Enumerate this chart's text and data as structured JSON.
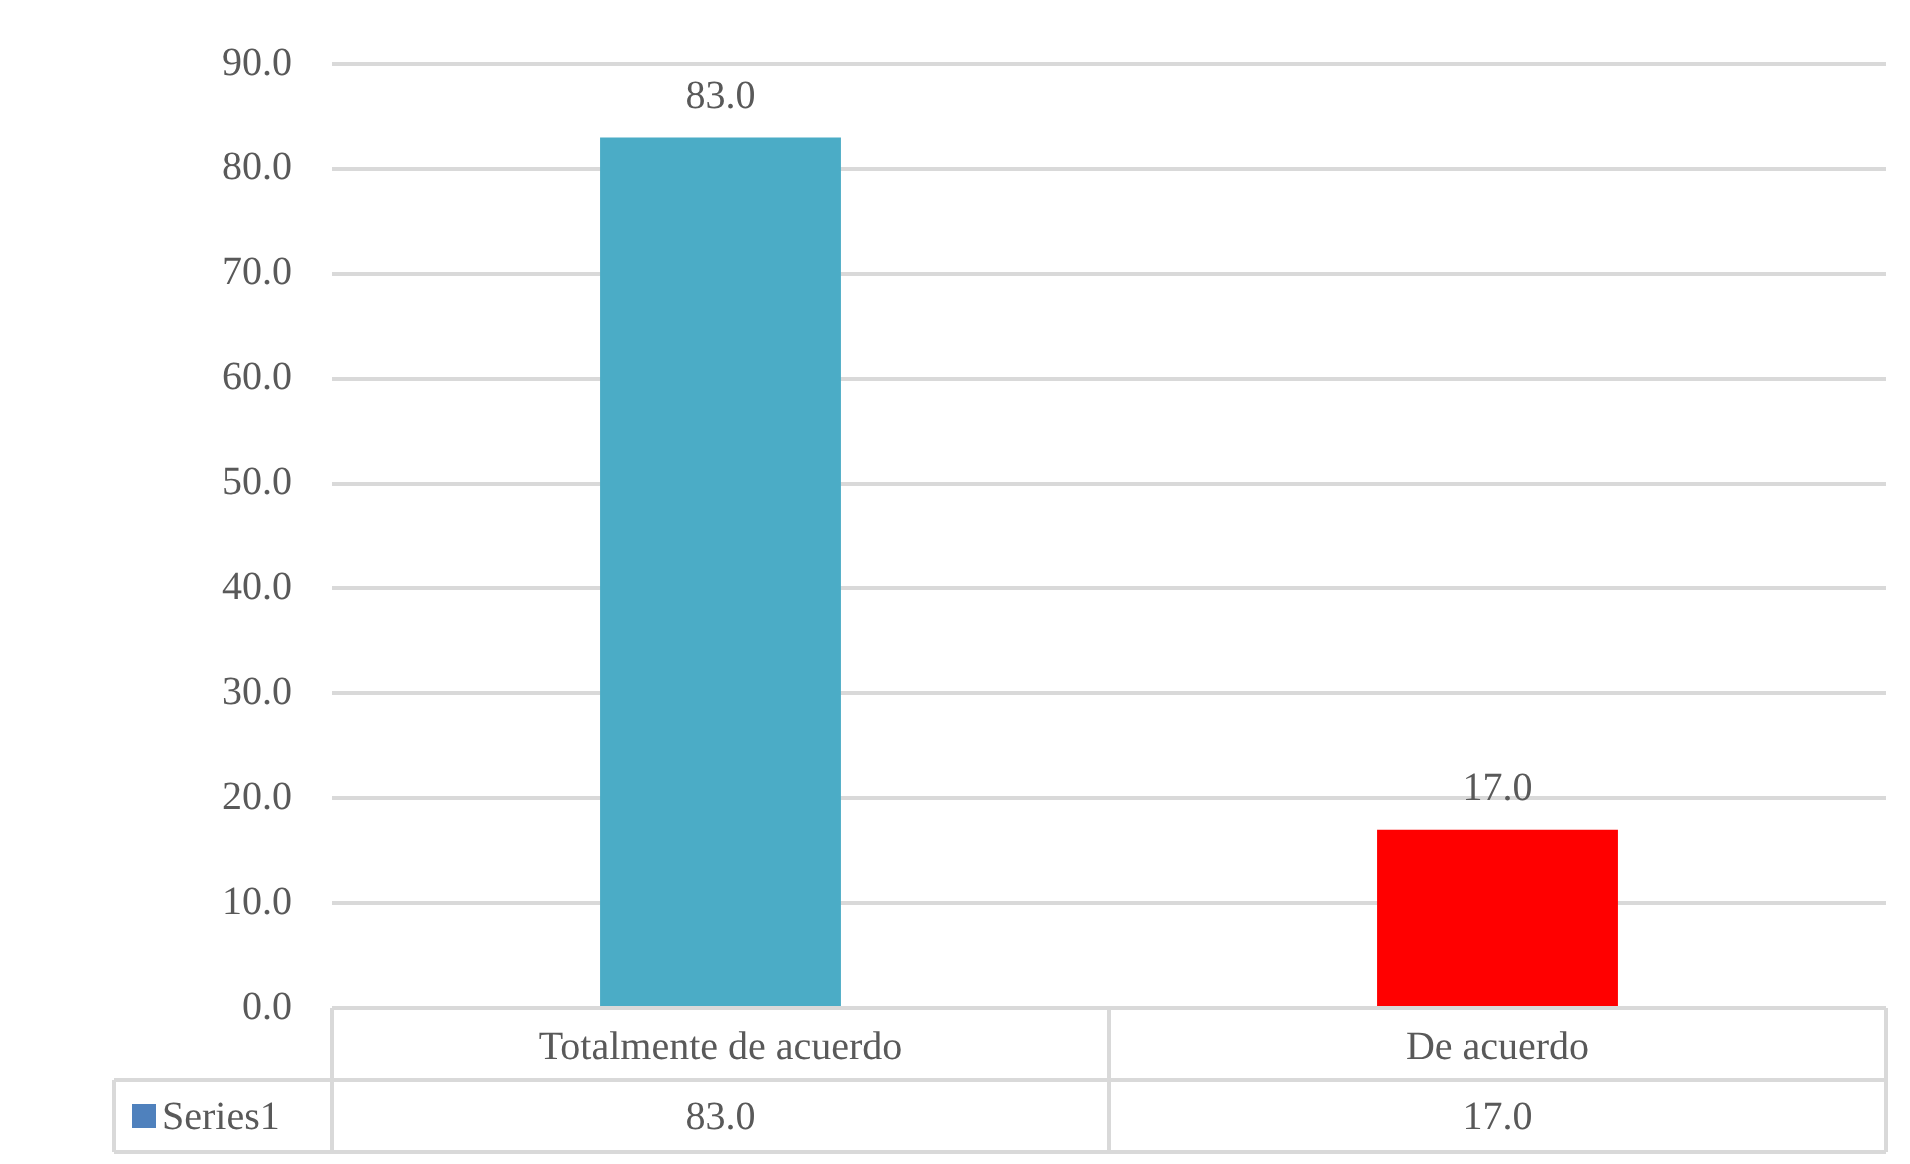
{
  "chart_data": {
    "type": "bar",
    "categories": [
      "Totalmente de acuerdo",
      "De acuerdo"
    ],
    "series": [
      {
        "name": "Series1",
        "color": "#4f81bd",
        "colors": [
          "#4bacc6",
          "#ff0000"
        ],
        "values": [
          83.0,
          17.0
        ],
        "value_labels": [
          "83.0",
          "17.0"
        ]
      }
    ],
    "ylim": [
      0,
      90
    ],
    "yticks": [
      {
        "value": 0,
        "label": "0.0"
      },
      {
        "value": 10,
        "label": "10.0"
      },
      {
        "value": 20,
        "label": "20.0"
      },
      {
        "value": 30,
        "label": "30.0"
      },
      {
        "value": 40,
        "label": "40.0"
      },
      {
        "value": 50,
        "label": "50.0"
      },
      {
        "value": 60,
        "label": "60.0"
      },
      {
        "value": 70,
        "label": "70.0"
      },
      {
        "value": 80,
        "label": "80.0"
      },
      {
        "value": 90,
        "label": "90.0"
      }
    ],
    "grid": "y",
    "legend": false
  }
}
